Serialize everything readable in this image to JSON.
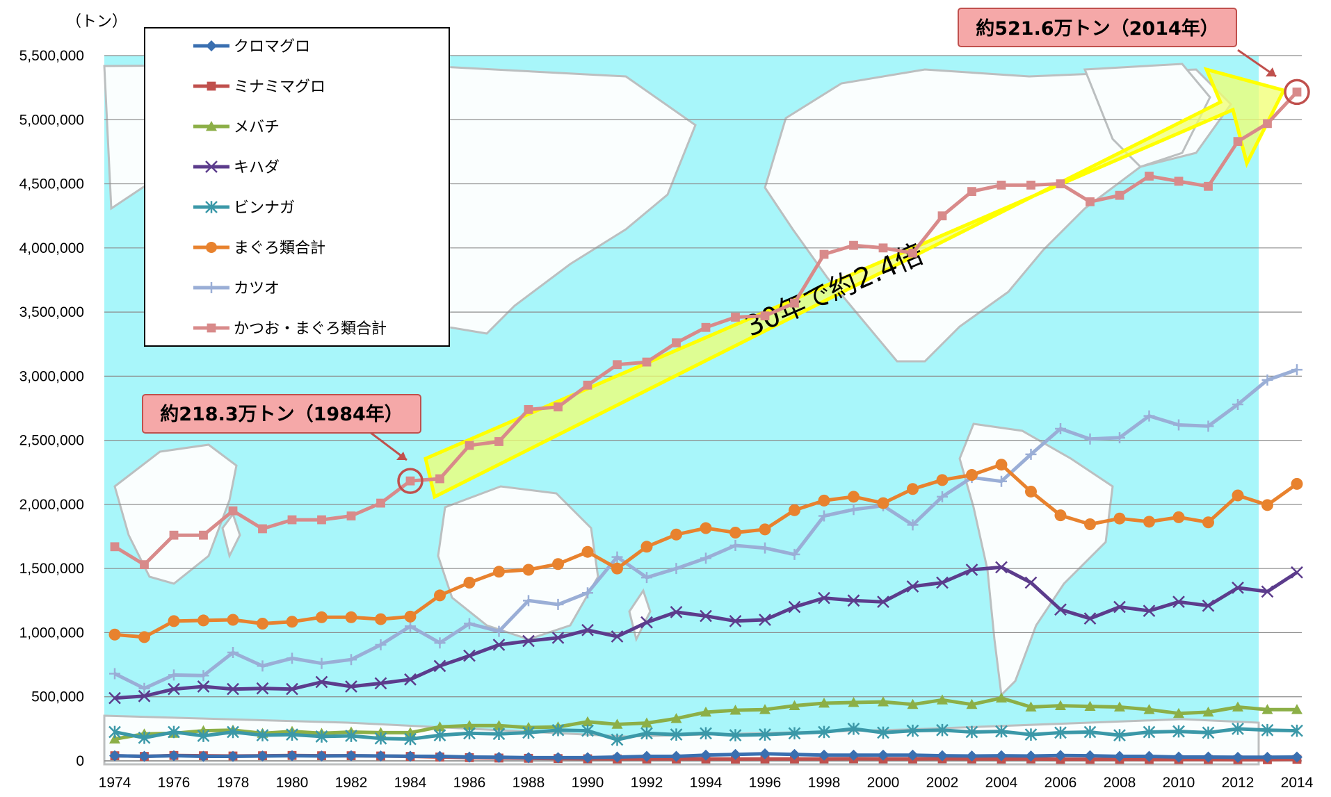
{
  "chart_data": {
    "type": "line",
    "unit_label": "（トン）",
    "x": [
      1974,
      1975,
      1976,
      1977,
      1978,
      1979,
      1980,
      1981,
      1982,
      1983,
      1984,
      1985,
      1986,
      1987,
      1988,
      1989,
      1990,
      1991,
      1992,
      1993,
      1994,
      1995,
      1996,
      1997,
      1998,
      1999,
      2000,
      2001,
      2002,
      2003,
      2004,
      2005,
      2006,
      2007,
      2008,
      2009,
      2010,
      2011,
      2012,
      2013,
      2014
    ],
    "x_ticks": [
      "1974",
      "1976",
      "1978",
      "1980",
      "1982",
      "1984",
      "1986",
      "1988",
      "1990",
      "1992",
      "1994",
      "1996",
      "1998",
      "2000",
      "2002",
      "2004",
      "2006",
      "2008",
      "2010",
      "2012",
      "2014"
    ],
    "y_ticks": [
      "0",
      "500,000",
      "1,000,000",
      "1,500,000",
      "2,000,000",
      "2,500,000",
      "3,000,000",
      "3,500,000",
      "4,000,000",
      "4,500,000",
      "5,000,000",
      "5,500,000"
    ],
    "ylim": [
      0,
      5500000
    ],
    "grid": true,
    "legend_position": "top-left",
    "series": [
      {
        "name": "クロマグロ",
        "color": "#3a6fb0",
        "marker": "diamond",
        "values": [
          40000,
          35000,
          40000,
          35000,
          35000,
          38000,
          40000,
          38000,
          40000,
          38000,
          36000,
          35000,
          30000,
          28000,
          25000,
          25000,
          25000,
          30000,
          35000,
          35000,
          45000,
          50000,
          55000,
          50000,
          45000,
          45000,
          45000,
          45000,
          40000,
          38000,
          40000,
          38000,
          42000,
          40000,
          35000,
          35000,
          30000,
          30000,
          28000,
          28000,
          30000
        ]
      },
      {
        "name": "ミナミマグロ",
        "color": "#c0504d",
        "marker": "square",
        "values": [
          40000,
          35000,
          42000,
          40000,
          38000,
          40000,
          42000,
          40000,
          40000,
          38000,
          35000,
          30000,
          25000,
          22000,
          20000,
          18000,
          16000,
          15000,
          15000,
          15000,
          15000,
          14000,
          15000,
          15000,
          15000,
          16000,
          15000,
          15000,
          16000,
          15000,
          14000,
          15000,
          12000,
          12000,
          12000,
          11000,
          11000,
          11000,
          10000,
          9000,
          12000
        ]
      },
      {
        "name": "メバチ",
        "color": "#8caf47",
        "marker": "triangle",
        "values": [
          170000,
          210000,
          215000,
          235000,
          240000,
          215000,
          230000,
          215000,
          225000,
          220000,
          220000,
          265000,
          275000,
          275000,
          260000,
          265000,
          305000,
          285000,
          295000,
          330000,
          380000,
          395000,
          400000,
          430000,
          450000,
          455000,
          460000,
          440000,
          475000,
          440000,
          490000,
          420000,
          430000,
          425000,
          420000,
          400000,
          370000,
          380000,
          420000,
          400000,
          400000
        ]
      },
      {
        "name": "キハダ",
        "color": "#5c3c8c",
        "marker": "x",
        "values": [
          490000,
          505000,
          560000,
          580000,
          560000,
          565000,
          560000,
          615000,
          580000,
          605000,
          635000,
          740000,
          820000,
          905000,
          935000,
          960000,
          1020000,
          970000,
          1080000,
          1160000,
          1130000,
          1090000,
          1100000,
          1200000,
          1270000,
          1250000,
          1240000,
          1360000,
          1390000,
          1490000,
          1510000,
          1390000,
          1180000,
          1110000,
          1200000,
          1170000,
          1240000,
          1210000,
          1350000,
          1320000,
          1470000
        ]
      },
      {
        "name": "ビンナガ",
        "color": "#3b98a8",
        "marker": "star",
        "values": [
          225000,
          180000,
          225000,
          195000,
          225000,
          200000,
          205000,
          190000,
          195000,
          175000,
          170000,
          200000,
          215000,
          210000,
          220000,
          240000,
          235000,
          165000,
          215000,
          205000,
          215000,
          200000,
          205000,
          215000,
          225000,
          250000,
          220000,
          235000,
          240000,
          225000,
          230000,
          205000,
          220000,
          225000,
          200000,
          225000,
          230000,
          220000,
          250000,
          240000,
          235000
        ]
      },
      {
        "name": "まぐろ類合計",
        "color": "#e8822e",
        "marker": "circle",
        "values": [
          985000,
          965000,
          1090000,
          1095000,
          1100000,
          1070000,
          1085000,
          1120000,
          1120000,
          1105000,
          1125000,
          1290000,
          1390000,
          1475000,
          1490000,
          1535000,
          1630000,
          1500000,
          1670000,
          1765000,
          1815000,
          1780000,
          1805000,
          1955000,
          2030000,
          2060000,
          2010000,
          2120000,
          2190000,
          2230000,
          2310000,
          2100000,
          1915000,
          1845000,
          1890000,
          1865000,
          1900000,
          1860000,
          2070000,
          1995000,
          2160000
        ]
      },
      {
        "name": "カツオ",
        "color": "#9aaed6",
        "marker": "plus",
        "values": [
          680000,
          565000,
          670000,
          665000,
          845000,
          740000,
          800000,
          760000,
          790000,
          905000,
          1050000,
          920000,
          1070000,
          1010000,
          1250000,
          1220000,
          1310000,
          1590000,
          1430000,
          1500000,
          1580000,
          1680000,
          1660000,
          1610000,
          1910000,
          1960000,
          1990000,
          1840000,
          2060000,
          2210000,
          2180000,
          2390000,
          2590000,
          2510000,
          2520000,
          2690000,
          2620000,
          2610000,
          2780000,
          2970000,
          3050000
        ]
      },
      {
        "name": "かつお・まぐろ類合計",
        "color": "#d88a8a",
        "marker": "square",
        "values": [
          1670000,
          1530000,
          1760000,
          1760000,
          1950000,
          1810000,
          1880000,
          1880000,
          1910000,
          2010000,
          2183000,
          2200000,
          2460000,
          2490000,
          2740000,
          2760000,
          2930000,
          3090000,
          3110000,
          3260000,
          3380000,
          3460000,
          3470000,
          3570000,
          3950000,
          4020000,
          4000000,
          3960000,
          4250000,
          4440000,
          4490000,
          4490000,
          4500000,
          4360000,
          4410000,
          4560000,
          4520000,
          4480000,
          4830000,
          4970000,
          5216000
        ]
      }
    ],
    "annotations": {
      "callout_1984": "約218.3万トン（1984年）",
      "callout_2014": "約521.6万トン（2014年）",
      "arrow_text": "30年で約2.4倍"
    }
  },
  "colors": {
    "plot_background": "#a8f6fa",
    "land": "#ffffff",
    "callout_fill": "#f5a8a8",
    "callout_border": "#c0504d",
    "arrow_fill": "#f0ff70",
    "arrow_border": "#ffff00",
    "highlight_circle": "#c0504d"
  }
}
